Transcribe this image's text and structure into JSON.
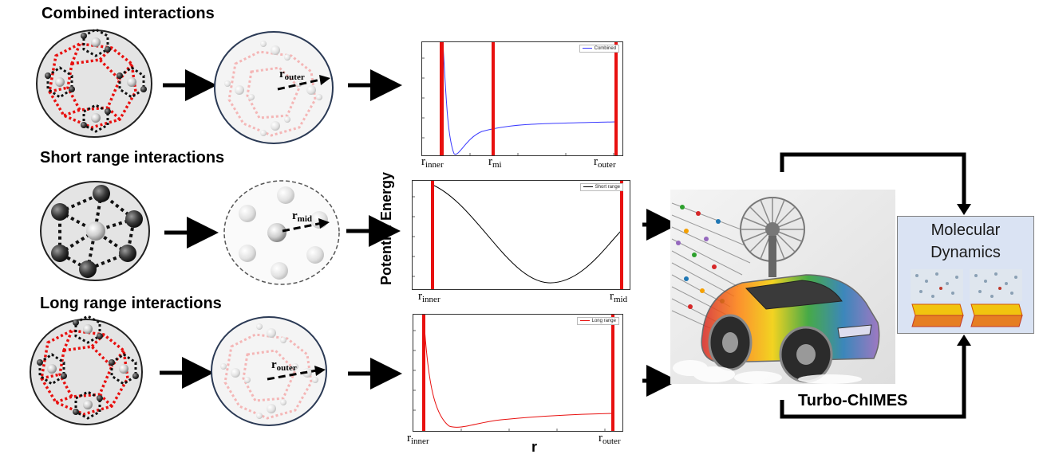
{
  "headings": {
    "combined": "Combined interactions",
    "short": "Short range interactions",
    "long": "Long range interactions"
  },
  "cutoffs": {
    "outer_main": "r",
    "outer_sub": "outer",
    "mid_main": "r",
    "mid_sub": "mid",
    "inner_main": "r",
    "inner_sub": "inner",
    "mi_main": "r",
    "mi_sub": "mi"
  },
  "plots": {
    "combined_legend": "Combined",
    "short_legend": "Short range",
    "long_legend": "Long range",
    "y_axis_label": "Potential Energy",
    "x_axis_label": "r"
  },
  "output": {
    "md_title": "Molecular Dynamics",
    "turbo_label": "Turbo-ChIMES"
  },
  "colors": {
    "cutoff_line": "#e8100f",
    "combined_curve": "#3a3aff",
    "short_curve": "#000000",
    "long_curve": "#e8100f",
    "md_box": "#dae3f3"
  }
}
